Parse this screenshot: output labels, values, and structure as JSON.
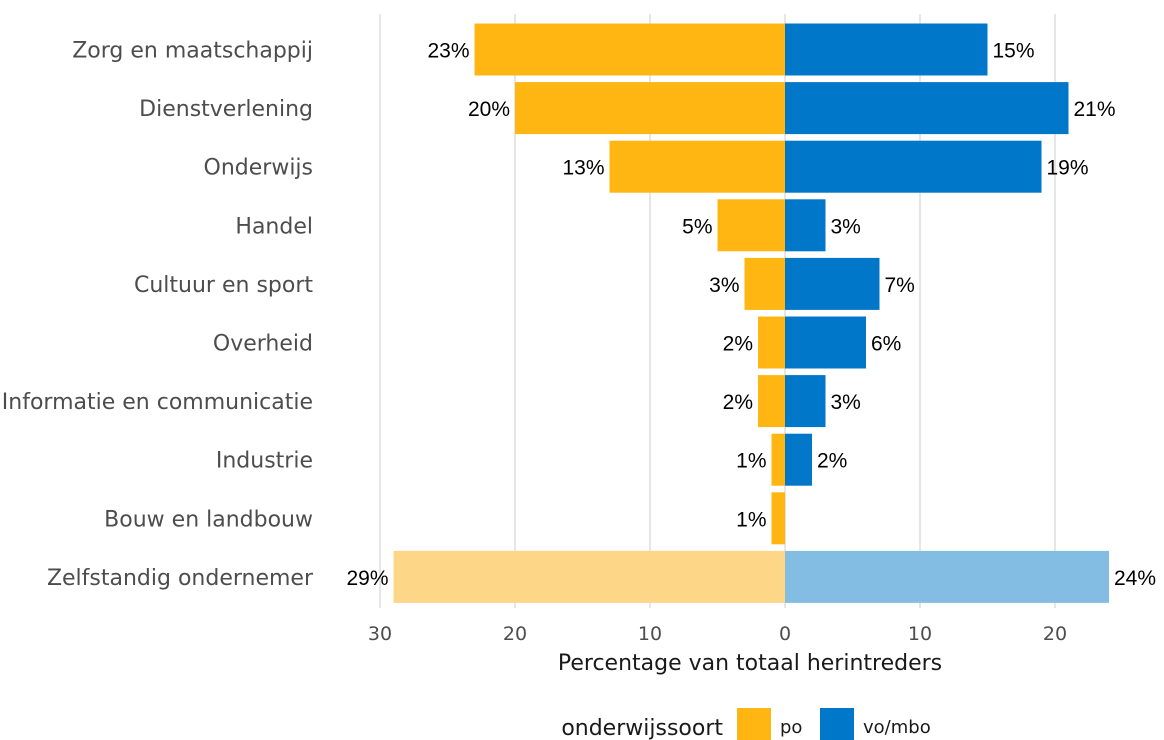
{
  "chart_data": {
    "type": "bar",
    "orientation": "horizontal-diverging",
    "categories": [
      "Zorg en maatschappij",
      "Dienstverlening",
      "Onderwijs",
      "Handel",
      "Cultuur en sport",
      "Overheid",
      "Informatie en communicatie",
      "Industrie",
      "Bouw en landbouw",
      "Zelfstandig ondernemer"
    ],
    "series": [
      {
        "name": "po",
        "side": "left",
        "values": [
          23,
          20,
          13,
          5,
          3,
          2,
          2,
          1,
          1,
          29
        ],
        "labels": [
          "23%",
          "20%",
          "13%",
          "5%",
          "3%",
          "2%",
          "2%",
          "1%",
          "1%",
          "29%"
        ],
        "color": "#ffb612",
        "highlight_color": "#fdd688"
      },
      {
        "name": "vo/mbo",
        "side": "right",
        "values": [
          15,
          21,
          19,
          3,
          7,
          6,
          3,
          2,
          0,
          24
        ],
        "labels": [
          "15%",
          "21%",
          "19%",
          "3%",
          "7%",
          "6%",
          "3%",
          "2%",
          "",
          "24%"
        ],
        "color": "#0077c8",
        "highlight_color": "#83bde3"
      }
    ],
    "highlight_category": "Zelfstandig ondernemer",
    "xlabel": "Percentage van totaal herintreders",
    "xlim": [
      -30,
      25
    ],
    "xticks": [
      -30,
      -20,
      -10,
      0,
      10,
      20
    ],
    "xtick_labels": [
      "30",
      "20",
      "10",
      "0",
      "10",
      "20"
    ],
    "grid": "vertical",
    "grid_color": "#dcdcdc",
    "legend": {
      "title": "onderwijssoort",
      "position": "bottom",
      "items": [
        "po",
        "vo/mbo"
      ]
    }
  }
}
